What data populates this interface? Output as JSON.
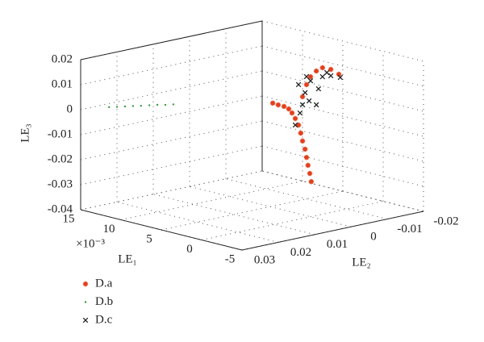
{
  "chart_data": {
    "type": "scatter3d",
    "xlabel": "LE₁",
    "ylabel": "LE₂",
    "zlabel": "LE₃",
    "xmultiplier": "×10⁻³",
    "xlim": [
      -5,
      15
    ],
    "xticks": [
      -5,
      0,
      5,
      10,
      15
    ],
    "ylim": [
      -0.02,
      0.03
    ],
    "yticks": [
      -0.02,
      -0.01,
      0,
      0.01,
      0.02,
      0.03
    ],
    "zlim": [
      -0.04,
      0.02
    ],
    "zticks": [
      -0.04,
      -0.03,
      -0.02,
      -0.01,
      0,
      0.01,
      0.02
    ],
    "grid": true,
    "series": [
      {
        "name": "D.a",
        "color": "#e2401c",
        "marker": "asterisk",
        "x": [
          5,
          5,
          5,
          5,
          5,
          5,
          5,
          5,
          5,
          5,
          5,
          5,
          5,
          5,
          5,
          5,
          5,
          5,
          5,
          5,
          5
        ],
        "y": [
          -0.0007,
          -0.0022,
          -0.0038,
          -0.0051,
          -0.006,
          -0.0069,
          -0.0078,
          -0.0084,
          -0.0089,
          -0.0096,
          -0.01,
          -0.0104,
          -0.0109,
          -0.0113,
          -0.0089,
          -0.01,
          -0.0111,
          -0.0127,
          -0.0144,
          -0.0167,
          -0.0189
        ],
        "z": [
          0.0012,
          0.0,
          -0.0011,
          -0.0025,
          -0.0044,
          -0.0069,
          -0.0098,
          -0.0132,
          -0.0165,
          -0.02,
          -0.0234,
          -0.0267,
          -0.0301,
          -0.0335,
          0.0012,
          0.0057,
          0.0085,
          0.0103,
          0.0111,
          0.0097,
          0.0071
        ]
      },
      {
        "name": "D.b",
        "color": "#3a9a3a",
        "marker": "dot",
        "x": [
          14,
          14,
          14,
          14,
          14,
          14,
          14,
          14,
          14
        ],
        "y": [
          0.0244,
          0.0222,
          0.02,
          0.0178,
          0.0156,
          0.0133,
          0.0111,
          0.0089,
          0.0067
        ],
        "z": [
          0.0001,
          -0.0005,
          -0.001,
          -0.0015,
          -0.0021,
          -0.0026,
          -0.0031,
          -0.0038,
          -0.0043
        ]
      },
      {
        "name": "D.c",
        "color": "#222222",
        "marker": "cross",
        "x": [
          5,
          5,
          5,
          5,
          5,
          5,
          5,
          5,
          5,
          5,
          5,
          5,
          5,
          5
        ],
        "y": [
          -0.0078,
          -0.0096,
          -0.0107,
          -0.0082,
          -0.0069,
          -0.0127,
          -0.0133,
          -0.0144,
          -0.0167,
          -0.0193,
          -0.0111,
          -0.0156,
          -0.0089,
          -0.01
        ],
        "z": [
          0.0064,
          0.0026,
          -0.001,
          -0.0051,
          -0.0095,
          -0.0032,
          0.003,
          0.0075,
          0.0072,
          0.0057,
          0.0069,
          0.0088,
          -0.002,
          0.0089
        ]
      }
    ]
  }
}
